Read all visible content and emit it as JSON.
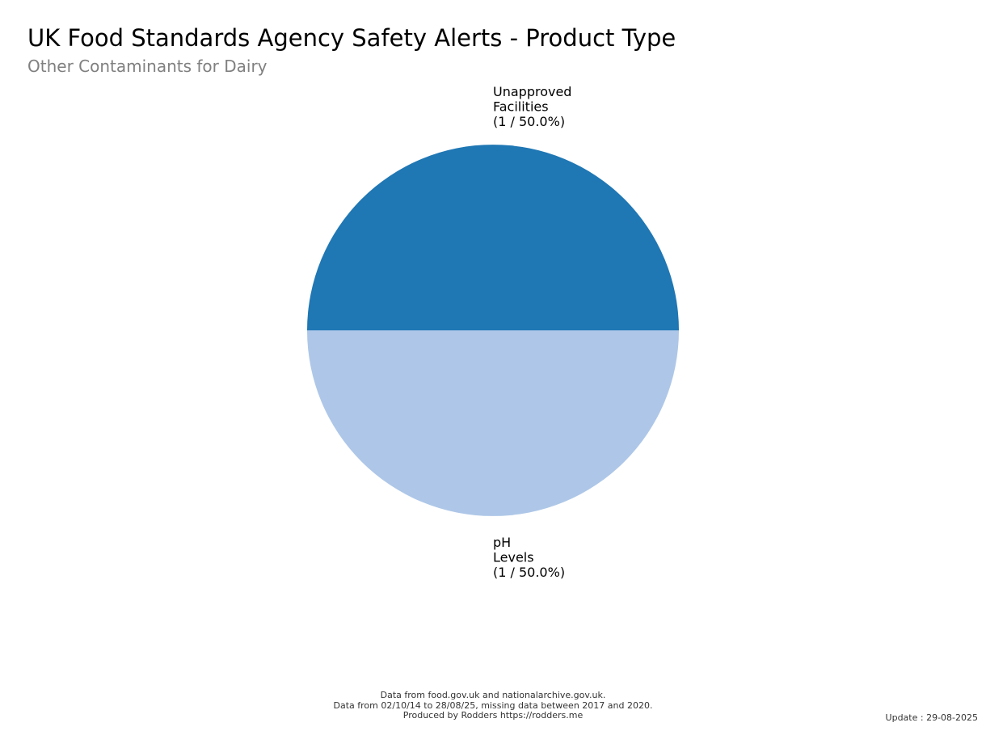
{
  "chart_data": {
    "type": "pie",
    "title": "UK Food Standards Agency Safety Alerts - Product Type",
    "subtitle": "Other Contaminants for Dairy",
    "slices": [
      {
        "label_lines": [
          "Unapproved",
          "Facilities",
          "(1 / 50.0%)"
        ],
        "category": "Unapproved Facilities",
        "value": 1,
        "percent": 50.0,
        "color": "#1f77b4"
      },
      {
        "label_lines": [
          "pH",
          "Levels",
          "(1 / 50.0%)"
        ],
        "category": "pH Levels",
        "value": 1,
        "percent": 50.0,
        "color": "#aec7e8"
      }
    ]
  },
  "footer": {
    "lines": [
      "Data from food.gov.uk and nationalarchive.gov.uk.",
      "Data from 02/10/14 to 28/08/25, missing data between 2017 and 2020.",
      "Produced by Rodders https://rodders.me"
    ],
    "update": "Update : 29-08-2025"
  }
}
